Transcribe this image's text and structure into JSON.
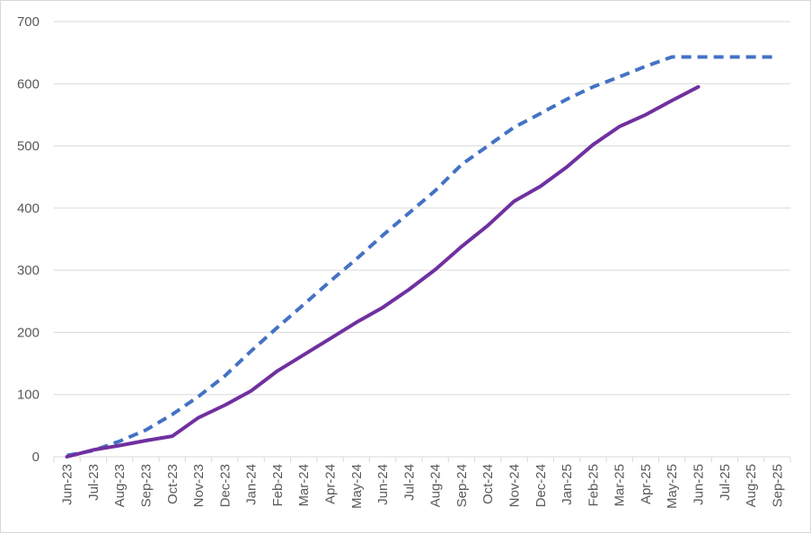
{
  "chart_data": {
    "type": "line",
    "title": "",
    "xlabel": "",
    "ylabel": "",
    "ylim": [
      0,
      700
    ],
    "yticks": [
      0,
      100,
      200,
      300,
      400,
      500,
      600,
      700
    ],
    "grid": true,
    "legend": "none",
    "categories": [
      "Jun-23",
      "Jul-23",
      "Aug-23",
      "Sep-23",
      "Oct-23",
      "Nov-23",
      "Dec-23",
      "Jan-24",
      "Feb-24",
      "Mar-24",
      "Apr-24",
      "May-24",
      "Jun-24",
      "Jul-24",
      "Aug-24",
      "Sep-24",
      "Oct-24",
      "Nov-24",
      "Dec-24",
      "Jan-25",
      "Feb-25",
      "Mar-25",
      "Apr-25",
      "May-25",
      "Jun-25",
      "Jul-25",
      "Aug-25",
      "Sep-25"
    ],
    "series": [
      {
        "style": "dashed",
        "color": "#4472C4",
        "values": [
          2,
          10,
          25,
          43,
          68,
          97,
          130,
          170,
          208,
          245,
          282,
          318,
          356,
          392,
          428,
          470,
          500,
          530,
          552,
          575,
          595,
          611,
          628,
          643,
          643,
          643,
          643,
          643
        ]
      },
      {
        "style": "solid",
        "color": "#7030A0",
        "values": [
          0,
          11,
          18,
          26,
          33,
          63,
          83,
          106,
          138,
          164,
          190,
          216,
          240,
          269,
          301,
          338,
          372,
          411,
          435,
          466,
          502,
          531,
          550,
          573,
          595,
          null,
          null,
          null
        ]
      }
    ]
  }
}
